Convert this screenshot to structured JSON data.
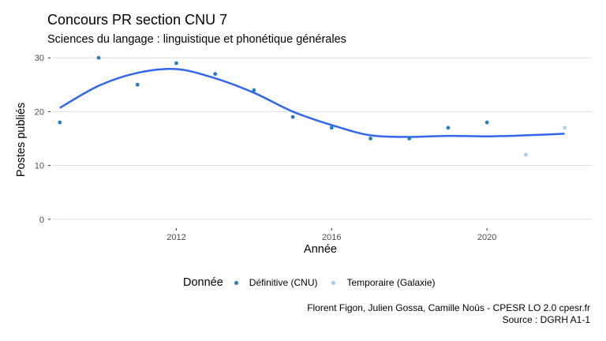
{
  "header": {
    "title": "Concours PR section CNU 7",
    "subtitle": "Sciences du langage : linguistique et phonétique générales"
  },
  "chart_data": {
    "type": "scatter",
    "xlabel": "Année",
    "ylabel": "Postes publiés",
    "xlim": [
      2008.8,
      2022.7
    ],
    "ylim": [
      -1.5,
      31.5
    ],
    "x_ticks": [
      2012,
      2016,
      2020
    ],
    "y_ticks": [
      0,
      10,
      20,
      30
    ],
    "grid": "horizontal",
    "legend_position": "bottom",
    "legend_title": "Donnée",
    "colors": {
      "definitive": "#2b7bba",
      "temporaire": "#a6cfe8",
      "smooth": "#3366ee",
      "grid": "#dddddd"
    },
    "series": [
      {
        "name": "Définitive (CNU)",
        "color": "#2b7bba",
        "points": [
          [
            2009,
            18
          ],
          [
            2010,
            30
          ],
          [
            2011,
            25
          ],
          [
            2012,
            29
          ],
          [
            2013,
            27
          ],
          [
            2014,
            24
          ],
          [
            2015,
            19
          ],
          [
            2016,
            17
          ],
          [
            2017,
            15
          ],
          [
            2018,
            15
          ],
          [
            2019,
            17
          ],
          [
            2020,
            18
          ]
        ]
      },
      {
        "name": "Temporaire (Galaxie)",
        "color": "#a6cfe8",
        "points": [
          [
            2021,
            12
          ],
          [
            2022,
            17
          ]
        ]
      }
    ],
    "smooth": [
      [
        2009,
        20.7
      ],
      [
        2010,
        24.8
      ],
      [
        2011,
        27.2
      ],
      [
        2012,
        27.9
      ],
      [
        2013,
        26.2
      ],
      [
        2014,
        23.5
      ],
      [
        2015,
        20.0
      ],
      [
        2016,
        17.5
      ],
      [
        2017,
        15.6
      ],
      [
        2018,
        15.3
      ],
      [
        2019,
        15.5
      ],
      [
        2020,
        15.4
      ],
      [
        2021,
        15.6
      ],
      [
        2022,
        15.9
      ]
    ]
  },
  "caption": {
    "line1": "Florent Figon, Julien Gossa, Camille Noûs - CPESR LO 2.0 cpesr.fr",
    "line2": "Source : DGRH A1-1"
  }
}
